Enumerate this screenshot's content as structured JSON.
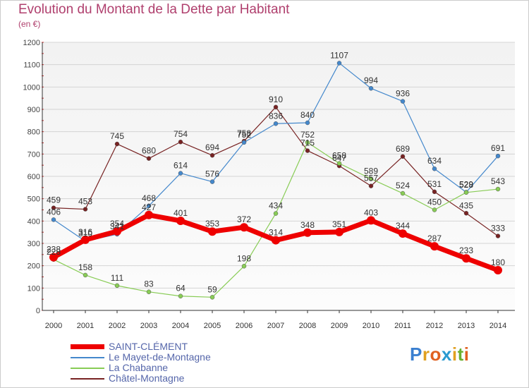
{
  "title": "Evolution du Montant de la Dette par Habitant",
  "subtitle": "(en €)",
  "watermark": {
    "text": "Proxiti",
    "colors": [
      "#3a7fd0",
      "#e0a020",
      "#e06020",
      "#2a9ad0",
      "#e0a020",
      "#6ab030",
      "#e06020"
    ]
  },
  "chart_data": {
    "type": "line",
    "title": "Evolution du Montant de la Dette par Habitant",
    "subtitle": "(en €)",
    "xlabel": "",
    "ylabel": "",
    "ylim": [
      0,
      1200
    ],
    "y_ticks": [
      0,
      100,
      200,
      300,
      400,
      500,
      600,
      700,
      800,
      900,
      1000,
      1100,
      1200
    ],
    "grid": true,
    "legend_position": "bottom-left",
    "x": [
      "2000",
      "2001",
      "2002",
      "2003",
      "2004",
      "2005",
      "2006",
      "2007",
      "2008",
      "2009",
      "2010",
      "2011",
      "2012",
      "2013",
      "2014"
    ],
    "series": [
      {
        "name": "SAINT-CLÉMENT",
        "color": "#ee0000",
        "values": [
          238,
          316,
          354,
          427,
          401,
          353,
          372,
          314,
          348,
          351,
          403,
          344,
          287,
          233,
          180
        ]
      },
      {
        "name": "Le Mayet-de-Montagne",
        "color": "#4488cc",
        "values": [
          406,
          310,
          341,
          468,
          614,
          576,
          752,
          836,
          840,
          1107,
          994,
          936,
          634,
          529,
          691
        ]
      },
      {
        "name": "La Chabanne",
        "color": "#88cc55",
        "values": [
          228,
          158,
          111,
          83,
          64,
          59,
          198,
          434,
          752,
          658,
          589,
          524,
          450,
          528,
          543
        ]
      },
      {
        "name": "Châtel-Montagne",
        "color": "#772222",
        "values": [
          459,
          453,
          745,
          680,
          754,
          694,
          758,
          910,
          715,
          647,
          557,
          689,
          531,
          435,
          333
        ]
      }
    ]
  }
}
